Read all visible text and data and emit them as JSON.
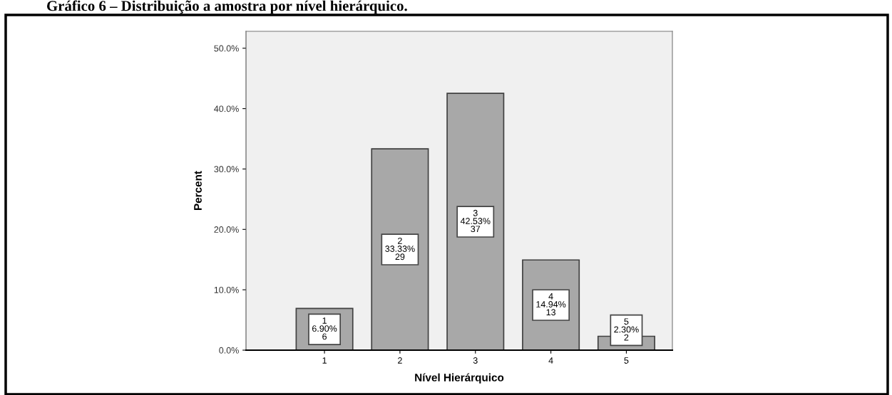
{
  "chart_data": {
    "type": "bar",
    "title": "Gráfico 6 – Distribuição a amostra por nível hierárquico.",
    "xlabel": "Nível Hierárquico",
    "ylabel": "Percent",
    "categories": [
      "1",
      "2",
      "3",
      "4",
      "5"
    ],
    "values": [
      6.9,
      33.33,
      42.53,
      14.94,
      2.3
    ],
    "value_labels": [
      "1\n6.90%\n6",
      "2\n33.33%\n29",
      "3\n42.53%\n37",
      "4\n14.94%\n13",
      "5\n2.30%\n2"
    ],
    "color": "#a8a8a8",
    "ylim": [
      0,
      52.8
    ],
    "yticks": [
      {
        "value": 0,
        "label": "0.0%"
      },
      {
        "value": 10,
        "label": "10.0%"
      },
      {
        "value": 20,
        "label": "20.0%"
      },
      {
        "value": 30,
        "label": "30.0%"
      },
      {
        "value": 40,
        "label": "40.0%"
      },
      {
        "value": 50,
        "label": "50.0%"
      }
    ],
    "grid": false,
    "legend": false
  }
}
